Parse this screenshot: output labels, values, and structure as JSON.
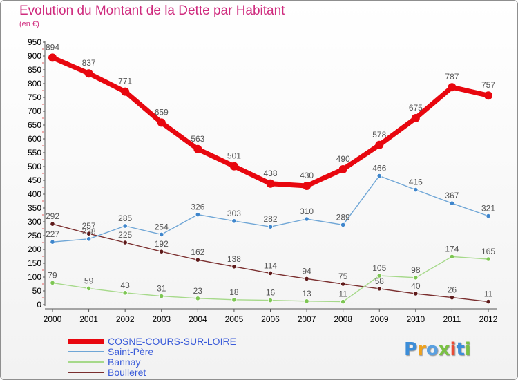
{
  "header": {
    "title": "Evolution du Montant de la Dette par Habitant",
    "subtitle": "(en €)"
  },
  "logo": {
    "text": "Proxiti",
    "letters": [
      {
        "ch": "P",
        "color": "#3c8dd8"
      },
      {
        "ch": "r",
        "color": "#f0a21d"
      },
      {
        "ch": "o",
        "color": "#5aa0e0"
      },
      {
        "ch": "x",
        "color": "#7ac143"
      },
      {
        "ch": "i",
        "color": "#e94b35"
      },
      {
        "ch": "t",
        "color": "#3c8dd8"
      },
      {
        "ch": "i",
        "color": "#7ac143"
      }
    ]
  },
  "chart_data": {
    "type": "line",
    "x": [
      "2000",
      "2001",
      "2002",
      "2003",
      "2004",
      "2005",
      "2006",
      "2007",
      "2008",
      "2009",
      "2010",
      "2011",
      "2012"
    ],
    "ylim": [
      0,
      950
    ],
    "yticks": [
      0,
      50,
      100,
      150,
      200,
      250,
      300,
      350,
      400,
      450,
      500,
      550,
      600,
      650,
      700,
      750,
      800,
      850,
      900,
      950
    ],
    "grid": false,
    "legend": "bottom-left",
    "series": [
      {
        "name": "COSNE-COURS-SUR-LOIRE",
        "color": "#e8070f",
        "marker": "#e8070f",
        "values": [
          894,
          837,
          771,
          659,
          563,
          501,
          438,
          430,
          490,
          578,
          675,
          787,
          757
        ]
      },
      {
        "name": "Saint-Père",
        "color": "#6fa6d6",
        "marker": "#3f86cc",
        "values": [
          227,
          238,
          285,
          254,
          326,
          303,
          282,
          310,
          289,
          466,
          416,
          367,
          321
        ]
      },
      {
        "name": "Bannay",
        "color": "#a6d98a",
        "marker": "#7dc653",
        "values": [
          79,
          59,
          43,
          31,
          23,
          18,
          16,
          13,
          11,
          105,
          98,
          174,
          165
        ]
      },
      {
        "name": "Boulleret",
        "color": "#7a2e2e",
        "marker": "#5e1a1a",
        "values": [
          292,
          257,
          225,
          192,
          162,
          138,
          114,
          94,
          75,
          58,
          40,
          26,
          11
        ]
      }
    ]
  }
}
